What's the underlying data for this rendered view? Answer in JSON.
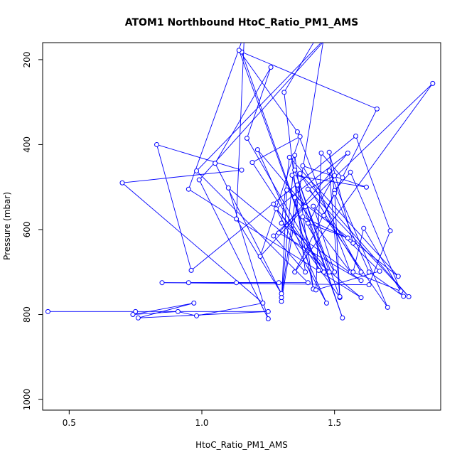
{
  "chart_data": {
    "type": "scatter",
    "connected": true,
    "title": "ATOM1 Northbound HtoC_Ratio_PM1_AMS",
    "xlabel": "HtoC_Ratio_PM1_AMS",
    "ylabel": "Pressure (mbar)",
    "xlim": [
      0.4,
      1.9
    ],
    "ylim": [
      1025,
      160
    ],
    "y_reversed": true,
    "x_ticks": [
      0.5,
      1.0,
      1.5
    ],
    "x_tick_labels": [
      "0.5",
      "1.0",
      "1.5"
    ],
    "y_ticks": [
      200,
      400,
      600,
      800,
      1000
    ],
    "y_tick_labels": [
      "200",
      "400",
      "600",
      "800",
      "1000"
    ],
    "grid": false,
    "legend": "none",
    "colors": {
      "series": "#0000ff",
      "frame": "#000000",
      "text": "#000000"
    },
    "series": [
      {
        "points": [
          [
            0.42,
            793
          ],
          [
            0.75,
            793
          ],
          [
            1.25,
            793
          ],
          [
            0.76,
            808
          ],
          [
            0.97,
            773
          ],
          [
            0.74,
            800
          ],
          [
            0.91,
            793
          ],
          [
            0.98,
            803
          ],
          [
            1.23,
            773
          ],
          [
            0.7,
            490
          ],
          [
            1.15,
            460
          ],
          [
            0.83,
            400
          ],
          [
            0.96,
            696
          ],
          [
            1.58,
            380
          ],
          [
            1.71,
            603
          ],
          [
            1.63,
            730
          ],
          [
            0.85,
            725
          ],
          [
            1.29,
            725
          ],
          [
            1.13,
            725
          ],
          [
            0.95,
            725
          ],
          [
            1.4,
            725
          ],
          [
            0.98,
            462
          ],
          [
            1.53,
            108
          ],
          [
            0.99,
            483
          ],
          [
            1.25,
            810
          ],
          [
            1.1,
            502
          ],
          [
            1.6,
            760
          ],
          [
            0.95,
            505
          ],
          [
            1.16,
            140
          ],
          [
            1.13,
            575
          ],
          [
            1.3,
            751
          ],
          [
            1.05,
            444
          ],
          [
            1.26,
            218
          ],
          [
            1.17,
            385
          ],
          [
            1.46,
            700
          ],
          [
            1.19,
            442
          ],
          [
            1.37,
            381
          ],
          [
            1.22,
            663
          ],
          [
            1.39,
            546
          ],
          [
            1.21,
            412
          ],
          [
            1.47,
            773
          ],
          [
            1.27,
            540
          ],
          [
            1.52,
            760
          ],
          [
            1.35,
            460
          ],
          [
            1.48,
            700
          ],
          [
            1.28,
            551
          ],
          [
            1.55,
            420
          ],
          [
            1.29,
            608
          ],
          [
            1.6,
            720
          ],
          [
            1.3,
            585
          ],
          [
            1.33,
            430
          ],
          [
            1.74,
            710
          ],
          [
            1.32,
            507
          ],
          [
            1.3,
            769
          ],
          [
            1.47,
            108
          ],
          [
            1.31,
            277
          ],
          [
            1.39,
            700
          ],
          [
            1.27,
            615
          ],
          [
            1.87,
            256
          ],
          [
            1.35,
            700
          ],
          [
            1.66,
            316
          ],
          [
            1.15,
            182
          ],
          [
            1.44,
            696
          ],
          [
            1.14,
            178
          ],
          [
            1.36,
            370
          ],
          [
            1.56,
            700
          ],
          [
            1.35,
            525
          ],
          [
            1.42,
            740
          ],
          [
            1.35,
            425
          ],
          [
            1.3,
            760
          ],
          [
            1.36,
            495
          ],
          [
            1.53,
            808
          ],
          [
            1.34,
            472
          ],
          [
            1.62,
            500
          ],
          [
            1.38,
            450
          ],
          [
            1.6,
            700
          ],
          [
            1.37,
            468
          ],
          [
            1.78,
            758
          ],
          [
            1.4,
            505
          ],
          [
            1.5,
            473
          ],
          [
            1.4,
            585
          ],
          [
            1.55,
            620
          ],
          [
            1.38,
            570
          ],
          [
            1.5,
            700
          ],
          [
            1.42,
            545
          ],
          [
            1.67,
            698
          ],
          [
            1.43,
            742
          ],
          [
            1.45,
            420
          ],
          [
            1.53,
            478
          ],
          [
            1.46,
            567
          ],
          [
            1.7,
            783
          ],
          [
            1.48,
            462
          ],
          [
            1.52,
            758
          ],
          [
            1.5,
            508
          ],
          [
            1.56,
            465
          ],
          [
            1.75,
            745
          ],
          [
            1.57,
            700
          ],
          [
            1.61,
            597
          ],
          [
            1.76,
            757
          ],
          [
            1.63,
            700
          ],
          [
            1.5,
            515
          ],
          [
            1.48,
            418
          ],
          [
            1.57,
            632
          ]
        ]
      }
    ]
  }
}
